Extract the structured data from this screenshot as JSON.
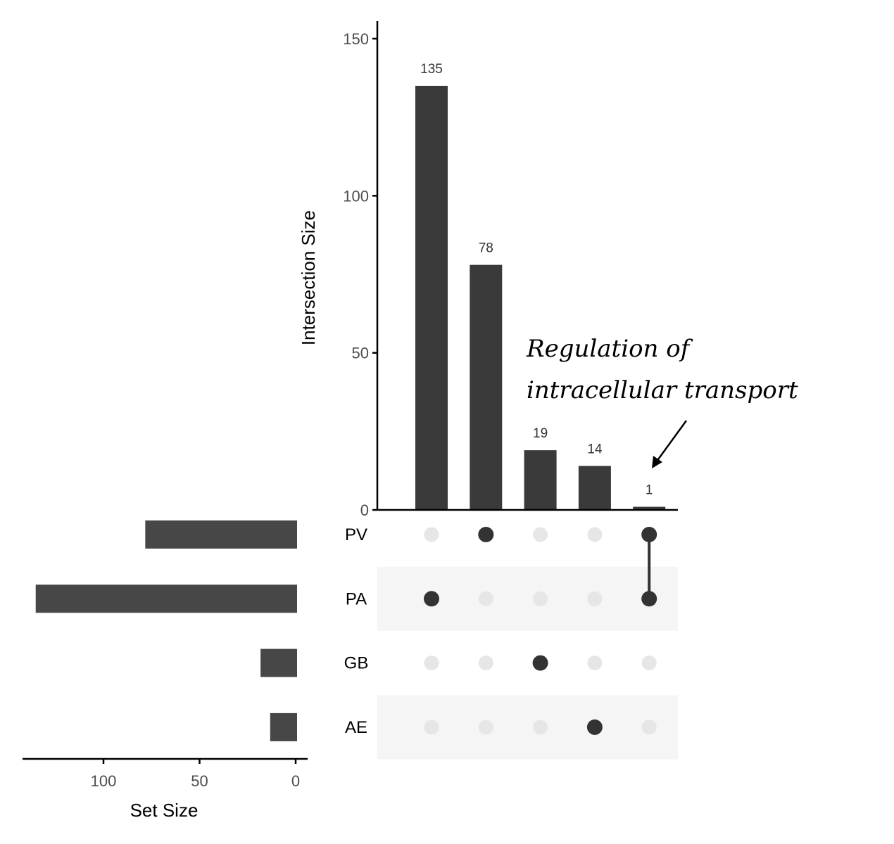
{
  "chart_data": {
    "type": "bar",
    "subtype": "upset",
    "sets": [
      "PV",
      "PA",
      "GB",
      "AE"
    ],
    "set_sizes": [
      79,
      136,
      19,
      14
    ],
    "set_size_axis": {
      "label": "Set Size",
      "ticks": [
        100,
        50,
        0
      ],
      "tick_labels": [
        "100",
        "50",
        "0"
      ]
    },
    "intersections": [
      {
        "members": [
          "PA"
        ],
        "size": 135,
        "label": "135"
      },
      {
        "members": [
          "PV"
        ],
        "size": 78,
        "label": "78"
      },
      {
        "members": [
          "GB"
        ],
        "size": 19,
        "label": "19"
      },
      {
        "members": [
          "AE"
        ],
        "size": 14,
        "label": "14"
      },
      {
        "members": [
          "PV",
          "PA"
        ],
        "size": 1,
        "label": "1"
      }
    ],
    "intersection_axis": {
      "label": "Intersection Size",
      "ylim": [
        0,
        150
      ],
      "ticks": [
        0,
        50,
        100,
        150
      ],
      "tick_labels": [
        "0",
        "50",
        "100",
        "150"
      ]
    },
    "annotation": {
      "lines": [
        "Regulation of",
        "intracellular transport"
      ],
      "target_intersection": 4
    },
    "colors": {
      "bar": "#3a3a3a",
      "set_bar": "#474747",
      "dot_on": "#333333",
      "dot_off": "#e6e6e6",
      "band": "#f5f5f5"
    }
  }
}
